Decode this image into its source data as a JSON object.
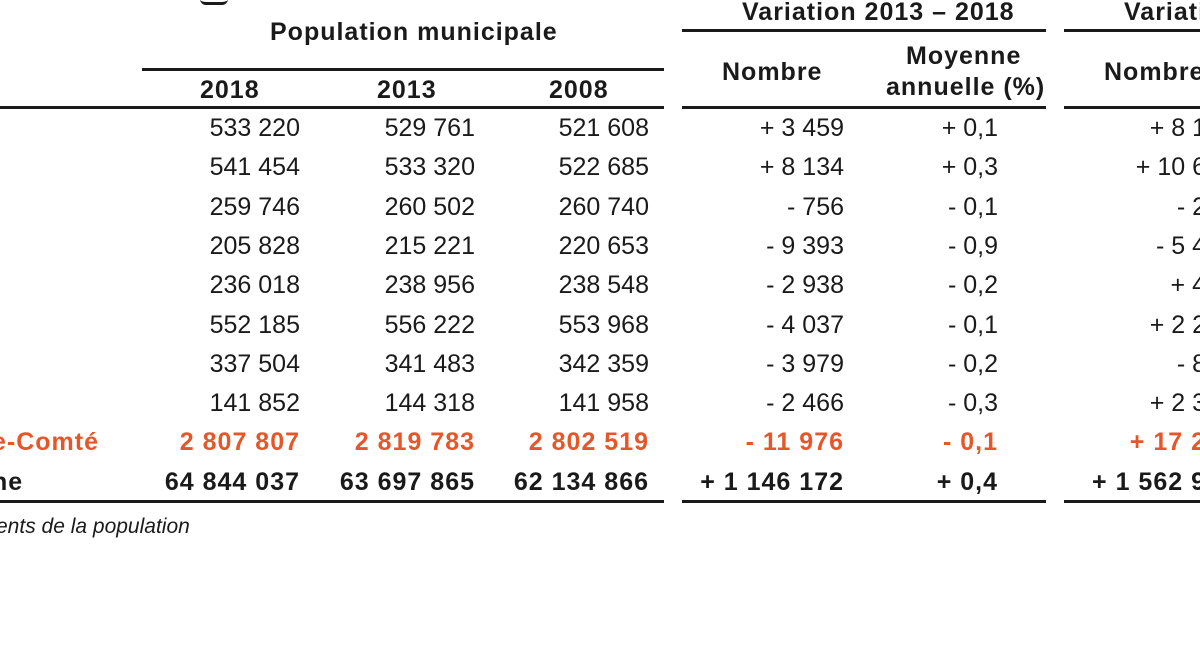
{
  "headers": {
    "population_group": "Population municipale",
    "variation_1": "Variation 2013 – 2018",
    "variation_2": "Variati",
    "year_2018": "2018",
    "year_2013": "2013",
    "year_2008": "2008",
    "nombre_1": "Nombre",
    "moyenne_line1": "Moyenne",
    "moyenne_line2": "annuelle (%)",
    "nombre_2": "Nombre"
  },
  "rows": [
    {
      "label": "",
      "p2018": "533 220",
      "p2013": "529 761",
      "p2008": "521 608",
      "nombre": "+ 3 459",
      "moyenne": "+ 0,1",
      "nombre2": "+ 8 1",
      "style": "normal"
    },
    {
      "label": "",
      "p2018": "541 454",
      "p2013": "533 320",
      "p2008": "522 685",
      "nombre": "+ 8 134",
      "moyenne": "+ 0,3",
      "nombre2": "+ 10 6",
      "style": "normal"
    },
    {
      "label": "",
      "p2018": "259 746",
      "p2013": "260 502",
      "p2008": "260 740",
      "nombre": "- 756",
      "moyenne": "- 0,1",
      "nombre2": "- 2",
      "style": "normal"
    },
    {
      "label": "",
      "p2018": "205 828",
      "p2013": "215 221",
      "p2008": "220 653",
      "nombre": "- 9 393",
      "moyenne": "- 0,9",
      "nombre2": "- 5 4",
      "style": "normal"
    },
    {
      "label": "",
      "p2018": "236 018",
      "p2013": "238 956",
      "p2008": "238 548",
      "nombre": "- 2 938",
      "moyenne": "- 0,2",
      "nombre2": "+ 4",
      "style": "normal"
    },
    {
      "label": "",
      "p2018": "552 185",
      "p2013": "556 222",
      "p2008": "553 968",
      "nombre": "- 4 037",
      "moyenne": "- 0,1",
      "nombre2": "+ 2 2",
      "style": "normal"
    },
    {
      "label": "",
      "p2018": "337 504",
      "p2013": "341 483",
      "p2008": "342 359",
      "nombre": "- 3 979",
      "moyenne": "- 0,2",
      "nombre2": "- 8",
      "style": "normal"
    },
    {
      "label": "",
      "p2018": "141 852",
      "p2013": "144 318",
      "p2008": "141 958",
      "nombre": "- 2 466",
      "moyenne": "- 0,3",
      "nombre2": "+ 2 3",
      "style": "normal"
    },
    {
      "label": "e-Comté",
      "p2018": "2 807 807",
      "p2013": "2 819 783",
      "p2008": "2 802 519",
      "nombre": "- 11 976",
      "moyenne": "- 0,1",
      "nombre2": "+ 17 2",
      "style": "orange"
    },
    {
      "label": "ne",
      "p2018": "64 844 037",
      "p2013": "63 697 865",
      "p2008": "62 134 866",
      "nombre": "+ 1 146 172",
      "moyenne": "+ 0,4",
      "nombre2": "+ 1 562 9",
      "style": "bold"
    }
  ],
  "footnote": "ents de la population",
  "colors": {
    "accent": "#e5572a",
    "text": "#1a1a1a"
  }
}
